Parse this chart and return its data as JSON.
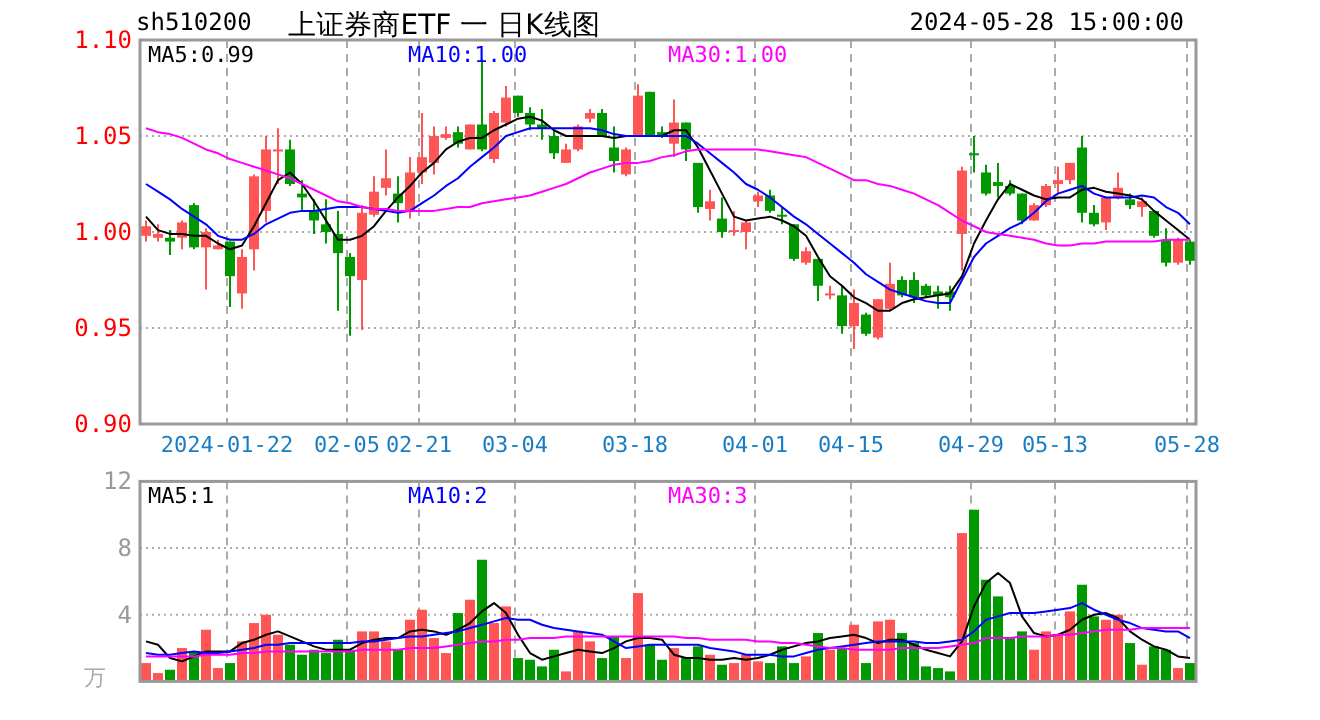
{
  "chart_data": [
    {
      "type": "candlestick",
      "title": "上证券商ETF 一 日K线图",
      "annotations": [
        "sh510200",
        "2024-05-28 15:00:00"
      ],
      "categories": [
        null,
        null,
        null,
        null,
        null,
        null,
        null,
        "2024-01-22",
        null,
        null,
        null,
        null,
        null,
        null,
        null,
        null,
        null,
        "02-05",
        null,
        null,
        null,
        null,
        null,
        "02-21",
        null,
        null,
        null,
        null,
        null,
        null,
        null,
        "03-04",
        null,
        null,
        null,
        null,
        null,
        null,
        null,
        null,
        null,
        "03-18",
        null,
        null,
        null,
        null,
        null,
        null,
        null,
        null,
        null,
        "04-01",
        null,
        null,
        null,
        null,
        null,
        null,
        null,
        "04-15",
        null,
        null,
        null,
        null,
        null,
        null,
        null,
        null,
        null,
        "04-29",
        null,
        null,
        null,
        null,
        null,
        null,
        "05-13",
        null,
        null,
        null,
        null,
        null,
        null,
        null,
        null,
        null,
        null,
        "05-28"
      ],
      "ohlc": [
        [
          0.998,
          1.006,
          0.995,
          1.003
        ],
        [
          0.997,
          1.004,
          0.995,
          0.999
        ],
        [
          0.997,
          1.001,
          0.988,
          0.995
        ],
        [
          0.997,
          1.006,
          0.991,
          1.005
        ],
        [
          1.014,
          1.015,
          0.991,
          0.992
        ],
        [
          0.992,
          1.002,
          0.97,
          1.0
        ],
        [
          0.991,
          0.996,
          0.991,
          0.993
        ],
        [
          0.995,
          0.995,
          0.961,
          0.977
        ],
        [
          0.968,
          0.991,
          0.96,
          0.987
        ],
        [
          0.991,
          1.03,
          0.98,
          1.029
        ],
        [
          1.011,
          1.05,
          1.005,
          1.043
        ],
        [
          1.042,
          1.054,
          1.025,
          1.043
        ],
        [
          1.043,
          1.048,
          1.024,
          1.025
        ],
        [
          1.02,
          1.027,
          1.011,
          1.018
        ],
        [
          1.011,
          1.017,
          0.999,
          1.006
        ],
        [
          1.004,
          1.017,
          0.994,
          1.0
        ],
        [
          0.999,
          1.011,
          0.959,
          0.989
        ],
        [
          0.987,
          0.989,
          0.946,
          0.977
        ],
        [
          0.975,
          1.014,
          0.949,
          1.01
        ],
        [
          1.009,
          1.029,
          1.008,
          1.021
        ],
        [
          1.023,
          1.043,
          1.019,
          1.028
        ],
        [
          1.02,
          1.029,
          1.005,
          1.015
        ],
        [
          1.011,
          1.039,
          1.007,
          1.031
        ],
        [
          1.031,
          1.062,
          1.025,
          1.039
        ],
        [
          1.036,
          1.055,
          1.03,
          1.05
        ],
        [
          1.049,
          1.055,
          1.048,
          1.051
        ],
        [
          1.052,
          1.055,
          1.044,
          1.046
        ],
        [
          1.043,
          1.056,
          1.043,
          1.056
        ],
        [
          1.056,
          1.09,
          1.042,
          1.043
        ],
        [
          1.038,
          1.063,
          1.036,
          1.062
        ],
        [
          1.057,
          1.076,
          1.055,
          1.07
        ],
        [
          1.071,
          1.071,
          1.06,
          1.062
        ],
        [
          1.062,
          1.065,
          1.053,
          1.056
        ],
        [
          1.056,
          1.064,
          1.048,
          1.054
        ],
        [
          1.05,
          1.053,
          1.038,
          1.041
        ],
        [
          1.036,
          1.046,
          1.036,
          1.043
        ],
        [
          1.043,
          1.056,
          1.042,
          1.055
        ],
        [
          1.059,
          1.064,
          1.057,
          1.062
        ],
        [
          1.062,
          1.064,
          1.05,
          1.05
        ],
        [
          1.044,
          1.055,
          1.031,
          1.037
        ],
        [
          1.03,
          1.044,
          1.029,
          1.043
        ],
        [
          1.05,
          1.077,
          1.05,
          1.071
        ],
        [
          1.073,
          1.073,
          1.05,
          1.05
        ],
        [
          1.052,
          1.055,
          1.049,
          1.05
        ],
        [
          1.046,
          1.069,
          1.039,
          1.057
        ],
        [
          1.057,
          1.057,
          1.037,
          1.043
        ],
        [
          1.036,
          1.036,
          1.01,
          1.013
        ],
        [
          1.012,
          1.022,
          1.006,
          1.016
        ],
        [
          1.007,
          1.018,
          0.997,
          1.0
        ],
        [
          1.0,
          1.011,
          0.998,
          1.001
        ],
        [
          1.0,
          1.006,
          0.991,
          1.005
        ],
        [
          1.016,
          1.021,
          1.013,
          1.019
        ],
        [
          1.019,
          1.022,
          1.01,
          1.011
        ],
        [
          1.009,
          1.013,
          1.004,
          1.008
        ],
        [
          1.004,
          1.004,
          0.985,
          0.986
        ],
        [
          0.984,
          0.992,
          0.983,
          0.99
        ],
        [
          0.986,
          0.986,
          0.964,
          0.972
        ],
        [
          0.967,
          0.972,
          0.965,
          0.968
        ],
        [
          0.967,
          0.972,
          0.947,
          0.951
        ],
        [
          0.951,
          0.97,
          0.939,
          0.963
        ],
        [
          0.957,
          0.958,
          0.946,
          0.947
        ],
        [
          0.945,
          0.965,
          0.944,
          0.965
        ],
        [
          0.96,
          0.984,
          0.959,
          0.973
        ],
        [
          0.975,
          0.977,
          0.966,
          0.967
        ],
        [
          0.975,
          0.979,
          0.963,
          0.966
        ],
        [
          0.972,
          0.973,
          0.966,
          0.967
        ],
        [
          0.969,
          0.972,
          0.96,
          0.967
        ],
        [
          0.969,
          0.972,
          0.959,
          0.966
        ],
        [
          0.999,
          1.034,
          0.98,
          1.032
        ],
        [
          1.041,
          1.05,
          1.031,
          1.041
        ],
        [
          1.031,
          1.035,
          1.019,
          1.02
        ],
        [
          1.026,
          1.036,
          1.018,
          1.024
        ],
        [
          1.024,
          1.027,
          1.019,
          1.02
        ],
        [
          1.02,
          1.02,
          1.004,
          1.006
        ],
        [
          1.006,
          1.015,
          1.006,
          1.014
        ],
        [
          1.014,
          1.025,
          1.013,
          1.024
        ],
        [
          1.025,
          1.034,
          1.02,
          1.027
        ],
        [
          1.027,
          1.036,
          1.025,
          1.036
        ],
        [
          1.044,
          1.05,
          1.005,
          1.01
        ],
        [
          1.01,
          1.014,
          1.003,
          1.004
        ],
        [
          1.005,
          1.018,
          1.001,
          1.018
        ],
        [
          1.018,
          1.031,
          1.017,
          1.023
        ],
        [
          1.017,
          1.02,
          1.012,
          1.014
        ],
        [
          1.013,
          1.018,
          1.008,
          1.016
        ],
        [
          1.011,
          1.011,
          0.997,
          0.998
        ],
        [
          0.996,
          1.002,
          0.982,
          0.984
        ],
        [
          0.984,
          0.997,
          0.983,
          0.996
        ],
        [
          0.995,
          0.996,
          0.983,
          0.985
        ]
      ],
      "colors": [
        "#ff5555",
        "#ff5555",
        "#009900",
        "#ff5555",
        "#009900",
        "#ff5555",
        "#ff5555",
        "#009900",
        "#ff5555",
        "#ff5555",
        "#ff5555",
        "#ff5555",
        "#009900",
        "#009900",
        "#009900",
        "#009900",
        "#009900",
        "#009900",
        "#ff5555",
        "#ff5555",
        "#ff5555",
        "#009900",
        "#ff5555",
        "#ff5555",
        "#ff5555",
        "#ff5555",
        "#009900",
        "#ff5555",
        "#009900",
        "#ff5555",
        "#ff5555",
        "#009900",
        "#009900",
        "#009900",
        "#009900",
        "#ff5555",
        "#ff5555",
        "#ff5555",
        "#009900",
        "#009900",
        "#ff5555",
        "#ff5555",
        "#009900",
        "#009900",
        "#ff5555",
        "#009900",
        "#009900",
        "#ff5555",
        "#009900",
        "#ff5555",
        "#ff5555",
        "#ff5555",
        "#009900",
        "#009900",
        "#009900",
        "#ff5555",
        "#009900",
        "#ff5555",
        "#009900",
        "#ff5555",
        "#009900",
        "#ff5555",
        "#ff5555",
        "#009900",
        "#009900",
        "#009900",
        "#009900",
        "#009900",
        "#ff5555",
        "#009900",
        "#009900",
        "#009900",
        "#009900",
        "#009900",
        "#ff5555",
        "#ff5555",
        "#ff5555",
        "#ff5555",
        "#009900",
        "#009900",
        "#ff5555",
        "#ff5555",
        "#009900",
        "#ff5555",
        "#009900",
        "#009900",
        "#ff5555",
        "#009900"
      ],
      "series": [
        {
          "name": "MA5:0.99",
          "type": "line",
          "color": "#000000",
          "values": [
            1.008,
            1.001,
            0.999,
            0.999,
            0.998,
            0.998,
            0.994,
            0.991,
            0.993,
            1.003,
            1.015,
            1.027,
            1.031,
            1.025,
            1.016,
            1.006,
            0.996,
            0.996,
            0.998,
            1.003,
            1.011,
            1.018,
            1.024,
            1.031,
            1.036,
            1.043,
            1.047,
            1.049,
            1.049,
            1.053,
            1.056,
            1.059,
            1.06,
            1.058,
            1.053,
            1.05,
            1.05,
            1.05,
            1.05,
            1.049,
            1.05,
            1.05,
            1.05,
            1.05,
            1.053,
            1.053,
            1.044,
            1.032,
            1.02,
            1.008,
            1.006,
            1.007,
            1.008,
            1.006,
            1.003,
            0.998,
            0.987,
            0.977,
            0.972,
            0.966,
            0.963,
            0.959,
            0.959,
            0.963,
            0.965,
            0.966,
            0.967,
            0.968,
            0.977,
            0.994,
            1.006,
            1.017,
            1.025,
            1.022,
            1.019,
            1.017,
            1.018,
            1.018,
            1.022,
            1.023,
            1.021,
            1.02,
            1.019,
            1.017,
            1.011,
            1.006,
            1.001,
            0.996
          ]
        },
        {
          "name": "MA10:1.00",
          "type": "line",
          "color": "#0000ff",
          "values": [
            1.025,
            1.021,
            1.017,
            1.012,
            1.008,
            1.004,
            0.998,
            0.996,
            0.996,
            0.999,
            1.004,
            1.007,
            1.01,
            1.011,
            1.011,
            1.012,
            1.013,
            1.013,
            1.013,
            1.012,
            1.011,
            1.01,
            1.011,
            1.015,
            1.019,
            1.024,
            1.028,
            1.034,
            1.039,
            1.044,
            1.05,
            1.052,
            1.054,
            1.054,
            1.054,
            1.054,
            1.054,
            1.054,
            1.053,
            1.051,
            1.05,
            1.05,
            1.05,
            1.05,
            1.05,
            1.05,
            1.046,
            1.041,
            1.036,
            1.031,
            1.025,
            1.022,
            1.018,
            1.013,
            1.008,
            1.004,
            0.999,
            0.994,
            0.989,
            0.984,
            0.978,
            0.974,
            0.97,
            0.968,
            0.966,
            0.964,
            0.963,
            0.963,
            0.975,
            0.987,
            0.994,
            0.998,
            1.002,
            1.005,
            1.01,
            1.016,
            1.02,
            1.022,
            1.024,
            1.02,
            1.018,
            1.018,
            1.018,
            1.019,
            1.018,
            1.013,
            1.01,
            1.004
          ]
        },
        {
          "name": "MA30:1.00",
          "type": "line",
          "color": "#ff00ff",
          "values": [
            1.054,
            1.052,
            1.051,
            1.049,
            1.046,
            1.043,
            1.041,
            1.038,
            1.036,
            1.034,
            1.032,
            1.03,
            1.028,
            1.025,
            1.022,
            1.019,
            1.016,
            1.015,
            1.013,
            1.012,
            1.012,
            1.011,
            1.011,
            1.011,
            1.011,
            1.012,
            1.013,
            1.013,
            1.015,
            1.016,
            1.017,
            1.018,
            1.019,
            1.021,
            1.023,
            1.025,
            1.028,
            1.031,
            1.033,
            1.035,
            1.036,
            1.036,
            1.037,
            1.039,
            1.04,
            1.042,
            1.043,
            1.043,
            1.043,
            1.043,
            1.043,
            1.043,
            1.042,
            1.041,
            1.04,
            1.039,
            1.036,
            1.033,
            1.03,
            1.027,
            1.027,
            1.025,
            1.024,
            1.022,
            1.02,
            1.017,
            1.014,
            1.01,
            1.006,
            1.003,
            1.0,
            0.999,
            0.998,
            0.997,
            0.996,
            0.994,
            0.993,
            0.993,
            0.994,
            0.994,
            0.995,
            0.995,
            0.995,
            0.995,
            0.995,
            0.996,
            0.996,
            0.996
          ]
        }
      ],
      "ylim": [
        0.9,
        1.1
      ],
      "yticks": [
        {
          "value": 0.9,
          "label": "0.90"
        },
        0.95,
        {
          "value": 1.0,
          "label": "1.00"
        },
        1.05,
        {
          "value": 1.1,
          "label": "1.10"
        }
      ],
      "grid": true,
      "legend": "top"
    },
    {
      "type": "bar",
      "annotations": [
        "万"
      ],
      "categories": [
        null,
        null,
        null,
        null,
        null,
        null,
        null,
        null,
        null,
        null,
        null,
        null,
        null,
        null,
        null,
        null,
        null,
        null,
        null,
        null,
        null,
        null,
        null,
        null,
        null,
        null,
        null,
        null,
        null,
        null,
        null,
        null,
        null,
        null,
        null,
        null,
        null,
        null,
        null,
        null,
        null,
        null,
        null,
        null,
        null,
        null,
        null,
        null,
        null,
        null,
        null,
        null,
        null,
        null,
        null,
        null,
        null,
        null,
        null,
        null,
        null,
        null,
        null,
        null,
        null,
        null,
        null,
        null,
        null,
        null,
        null,
        null,
        null,
        null,
        null,
        null,
        null,
        null,
        null,
        null,
        null,
        null,
        null,
        null,
        null,
        null,
        null,
        null
      ],
      "series": [
        {
          "type": "bar",
          "values": [
            1.1,
            0.5,
            0.7,
            2.0,
            1.8,
            3.1,
            0.8,
            1.1,
            2.4,
            3.5,
            4.0,
            2.8,
            2.2,
            1.6,
            1.9,
            1.7,
            2.5,
            1.9,
            3.0,
            3.0,
            2.4,
            1.9,
            3.7,
            4.3,
            2.6,
            1.7,
            4.1,
            4.9,
            7.3,
            3.5,
            4.5,
            1.4,
            1.3,
            0.9,
            1.9,
            0.6,
            3.0,
            2.4,
            1.4,
            2.7,
            1.4,
            5.3,
            2.2,
            1.3,
            2.0,
            1.4,
            2.1,
            1.6,
            1.0,
            1.1,
            1.6,
            1.2,
            1.1,
            2.1,
            1.1,
            1.5,
            2.9,
            1.9,
            2.0,
            3.4,
            1.1,
            3.6,
            3.7,
            2.9,
            2.3,
            0.9,
            0.8,
            0.6,
            8.9,
            10.3,
            6.1,
            5.1,
            2.6,
            3.0,
            1.9,
            3.0,
            2.8,
            4.2,
            5.8,
            3.9,
            3.7,
            4.0,
            2.3,
            1.0,
            2.1,
            1.9,
            0.8,
            1.1
          ],
          "colors": [
            "#ff5555",
            "#ff5555",
            "#009900",
            "#ff5555",
            "#009900",
            "#ff5555",
            "#ff5555",
            "#009900",
            "#ff5555",
            "#ff5555",
            "#ff5555",
            "#ff5555",
            "#009900",
            "#009900",
            "#009900",
            "#009900",
            "#009900",
            "#009900",
            "#ff5555",
            "#ff5555",
            "#ff5555",
            "#009900",
            "#ff5555",
            "#ff5555",
            "#ff5555",
            "#ff5555",
            "#009900",
            "#ff5555",
            "#009900",
            "#ff5555",
            "#ff5555",
            "#009900",
            "#009900",
            "#009900",
            "#009900",
            "#ff5555",
            "#ff5555",
            "#ff5555",
            "#009900",
            "#009900",
            "#ff5555",
            "#ff5555",
            "#009900",
            "#009900",
            "#ff5555",
            "#009900",
            "#009900",
            "#ff5555",
            "#009900",
            "#ff5555",
            "#ff5555",
            "#ff5555",
            "#009900",
            "#009900",
            "#009900",
            "#ff5555",
            "#009900",
            "#ff5555",
            "#009900",
            "#ff5555",
            "#009900",
            "#ff5555",
            "#ff5555",
            "#009900",
            "#009900",
            "#009900",
            "#009900",
            "#009900",
            "#ff5555",
            "#009900",
            "#009900",
            "#009900",
            "#009900",
            "#009900",
            "#ff5555",
            "#ff5555",
            "#ff5555",
            "#ff5555",
            "#009900",
            "#009900",
            "#ff5555",
            "#ff5555",
            "#009900",
            "#ff5555",
            "#009900",
            "#009900",
            "#ff5555",
            "#009900"
          ]
        },
        {
          "name": "MA5:1",
          "type": "line",
          "color": "#000000",
          "values": [
            2.4,
            2.2,
            1.4,
            1.2,
            1.5,
            1.8,
            1.8,
            1.8,
            2.3,
            2.5,
            2.8,
            3.0,
            2.7,
            2.4,
            2.1,
            1.9,
            1.9,
            1.9,
            2.3,
            2.5,
            2.6,
            2.6,
            3.0,
            3.1,
            3.0,
            2.8,
            3.1,
            3.5,
            4.2,
            4.7,
            4.1,
            2.8,
            1.7,
            1.3,
            1.5,
            1.7,
            1.9,
            1.8,
            1.7,
            2.0,
            2.4,
            2.6,
            2.6,
            2.5,
            1.6,
            1.4,
            1.4,
            1.3,
            1.3,
            1.4,
            1.3,
            1.4,
            1.6,
            1.9,
            2.1,
            2.3,
            2.4,
            2.6,
            2.7,
            2.8,
            2.6,
            2.3,
            2.5,
            2.5,
            2.2,
            1.9,
            1.7,
            1.5,
            2.4,
            4.5,
            5.9,
            6.5,
            5.9,
            3.9,
            2.9,
            2.7,
            2.8,
            3.1,
            3.7,
            4.0,
            4.1,
            3.8,
            3.0,
            2.5,
            2.1,
            1.9,
            1.5,
            1.4
          ]
        },
        {
          "name": "MA10:2",
          "type": "line",
          "color": "#0000ff",
          "values": [
            1.7,
            1.6,
            1.6,
            1.7,
            1.8,
            1.7,
            1.7,
            1.8,
            1.9,
            2.0,
            2.2,
            2.2,
            2.3,
            2.3,
            2.3,
            2.3,
            2.3,
            2.3,
            2.4,
            2.4,
            2.5,
            2.6,
            2.7,
            2.7,
            2.8,
            2.9,
            3.0,
            3.2,
            3.4,
            3.6,
            3.8,
            3.7,
            3.7,
            3.4,
            3.2,
            3.1,
            3.0,
            2.9,
            2.8,
            2.4,
            2.0,
            2.1,
            2.2,
            2.2,
            2.2,
            2.2,
            2.2,
            2.0,
            1.9,
            1.8,
            1.6,
            1.6,
            1.6,
            1.5,
            1.5,
            1.7,
            1.9,
            2.0,
            2.1,
            2.2,
            2.3,
            2.4,
            2.4,
            2.4,
            2.4,
            2.3,
            2.3,
            2.4,
            2.5,
            3.0,
            3.7,
            3.9,
            4.1,
            4.1,
            4.1,
            4.2,
            4.3,
            4.4,
            4.7,
            4.3,
            4.0,
            3.7,
            3.5,
            3.2,
            3.1,
            3.0,
            3.0,
            2.6
          ]
        },
        {
          "name": "MA30:3",
          "type": "line",
          "color": "#ff00ff",
          "values": [
            1.5,
            1.5,
            1.5,
            1.5,
            1.5,
            1.6,
            1.6,
            1.6,
            1.7,
            1.7,
            1.8,
            1.8,
            1.8,
            1.8,
            1.8,
            1.8,
            1.8,
            1.8,
            1.9,
            1.9,
            1.9,
            1.9,
            2.0,
            2.0,
            2.0,
            2.1,
            2.2,
            2.3,
            2.4,
            2.4,
            2.5,
            2.5,
            2.6,
            2.6,
            2.6,
            2.7,
            2.7,
            2.7,
            2.7,
            2.7,
            2.7,
            2.7,
            2.7,
            2.7,
            2.7,
            2.6,
            2.6,
            2.5,
            2.5,
            2.5,
            2.5,
            2.4,
            2.4,
            2.3,
            2.3,
            2.2,
            2.1,
            2.0,
            2.0,
            1.9,
            1.9,
            1.9,
            1.9,
            2.0,
            2.0,
            2.0,
            2.0,
            2.1,
            2.2,
            2.3,
            2.6,
            2.6,
            2.6,
            2.7,
            2.7,
            2.7,
            2.8,
            2.8,
            2.9,
            3.0,
            3.1,
            3.1,
            3.1,
            3.2,
            3.2,
            3.2,
            3.2,
            3.2
          ]
        }
      ],
      "ylim": [
        0,
        12
      ],
      "yticks": [
        4,
        8,
        12
      ],
      "grid": true,
      "legend": "top",
      "tick_labels": "y"
    }
  ]
}
